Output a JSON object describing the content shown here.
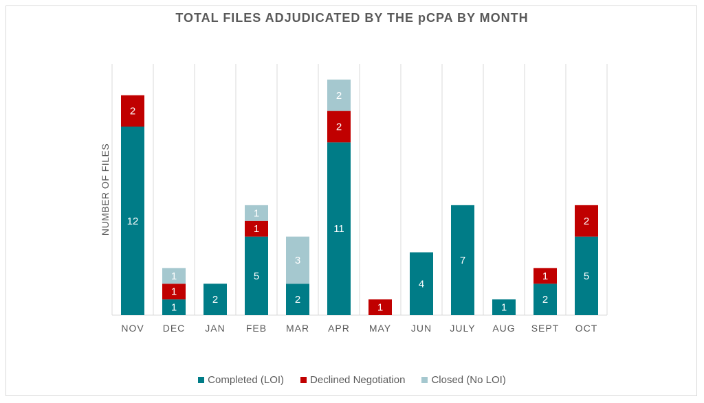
{
  "chart_data": {
    "type": "bar",
    "stacked": true,
    "title": "TOTAL FILES ADJUDICATED BY THE pCPA BY MONTH",
    "xlabel": "",
    "ylabel": "NUMBER OF FILES",
    "ylim": [
      0,
      16
    ],
    "grid": "vertical",
    "legend_position": "bottom",
    "categories": [
      "NOV",
      "DEC",
      "JAN",
      "FEB",
      "MAR",
      "APR",
      "MAY",
      "JUN",
      "JULY",
      "AUG",
      "SEPT",
      "OCT"
    ],
    "series": [
      {
        "name": "Completed (LOI)",
        "color": "#007C87",
        "values": [
          12,
          1,
          2,
          5,
          2,
          11,
          0,
          4,
          7,
          1,
          2,
          5
        ]
      },
      {
        "name": "Declined Negotiation",
        "color": "#C00000",
        "values": [
          2,
          1,
          0,
          1,
          0,
          2,
          1,
          0,
          0,
          0,
          1,
          2
        ]
      },
      {
        "name": "Closed (No LOI)",
        "color": "#A5C8CF",
        "values": [
          0,
          1,
          0,
          1,
          3,
          2,
          0,
          0,
          0,
          0,
          0,
          0
        ]
      }
    ]
  }
}
